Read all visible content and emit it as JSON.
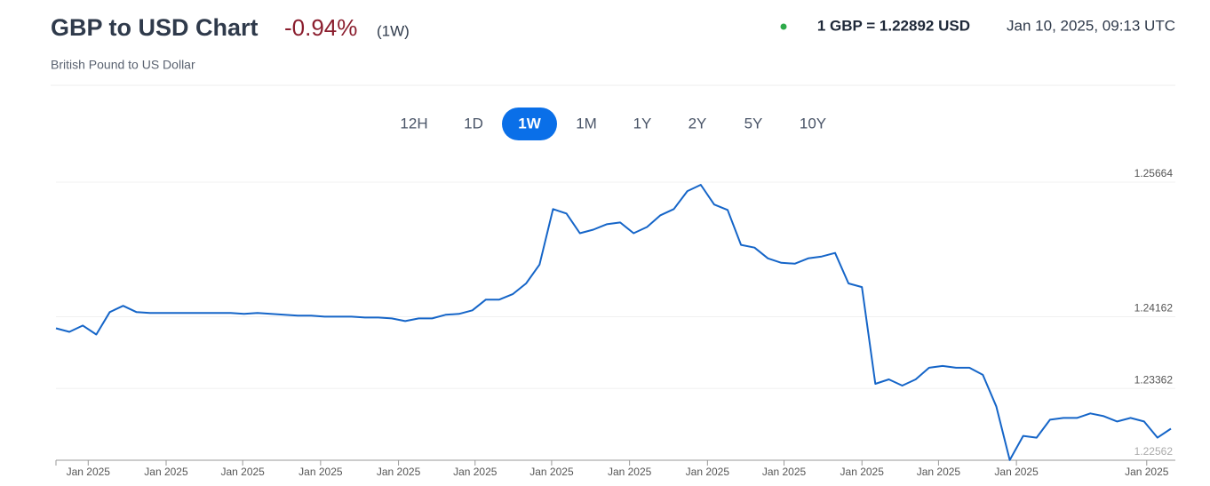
{
  "header": {
    "title": "GBP to USD Chart",
    "change": "-0.94%",
    "period": "(1W)",
    "subtitle": "British Pound to US Dollar"
  },
  "quote": {
    "rate": "1 GBP = 1.22892 USD",
    "timestamp": "Jan 10, 2025, 09:13 UTC"
  },
  "tabs": [
    {
      "label": "12H"
    },
    {
      "label": "1D"
    },
    {
      "label": "1W",
      "selected": true
    },
    {
      "label": "1M"
    },
    {
      "label": "1Y"
    },
    {
      "label": "2Y"
    },
    {
      "label": "5Y"
    },
    {
      "label": "10Y"
    }
  ],
  "chart_data": {
    "type": "line",
    "color": "#1565c8",
    "grid": true,
    "values": [
      1.24034,
      1.23994,
      1.24064,
      1.23964,
      1.24214,
      1.24284,
      1.24214,
      1.24204,
      1.24204,
      1.24204,
      1.24204,
      1.24204,
      1.24204,
      1.24204,
      1.24194,
      1.24204,
      1.24194,
      1.24184,
      1.24174,
      1.24174,
      1.24164,
      1.24164,
      1.24164,
      1.24154,
      1.24154,
      1.24144,
      1.24114,
      1.24144,
      1.24144,
      1.24184,
      1.24194,
      1.24234,
      1.24354,
      1.24354,
      1.24414,
      1.24534,
      1.24744,
      1.25364,
      1.25314,
      1.25094,
      1.25134,
      1.25194,
      1.25214,
      1.25094,
      1.25164,
      1.25294,
      1.25364,
      1.25564,
      1.25634,
      1.25414,
      1.25354,
      1.24964,
      1.24934,
      1.24814,
      1.24764,
      1.24754,
      1.24814,
      1.24834,
      1.24874,
      1.24534,
      1.24494,
      1.23414,
      1.23464,
      1.23394,
      1.23464,
      1.23594,
      1.23614,
      1.23594,
      1.23594,
      1.23514,
      1.23164,
      1.22564,
      1.22834,
      1.22814,
      1.23014,
      1.23034,
      1.23034,
      1.23084,
      1.23054,
      1.22994,
      1.23034,
      1.22994,
      1.22814,
      1.22914
    ],
    "xlim": [
      0,
      83
    ],
    "xticks": [
      {
        "value": 2.4,
        "label": "Jan 2025"
      },
      {
        "value": 8.2,
        "label": "Jan 2025"
      },
      {
        "value": 13.9,
        "label": "Jan 2025"
      },
      {
        "value": 19.7,
        "label": "Jan 2025"
      },
      {
        "value": 25.5,
        "label": "Jan 2025"
      },
      {
        "value": 31.2,
        "label": "Jan 2025"
      },
      {
        "value": 36.9,
        "label": "Jan 2025"
      },
      {
        "value": 42.7,
        "label": "Jan 2025"
      },
      {
        "value": 48.5,
        "label": "Jan 2025"
      },
      {
        "value": 54.2,
        "label": "Jan 2025"
      },
      {
        "value": 60,
        "label": "Jan 2025"
      },
      {
        "value": 65.7,
        "label": "Jan 2025"
      },
      {
        "value": 71.5,
        "label": "Jan 2025"
      },
      {
        "value": 81.2,
        "label": "Jan 2025"
      }
    ],
    "ylim": [
      1.22562,
      1.25664
    ],
    "yticks": [
      1.25664,
      1.24162,
      1.23362,
      1.22562
    ]
  }
}
